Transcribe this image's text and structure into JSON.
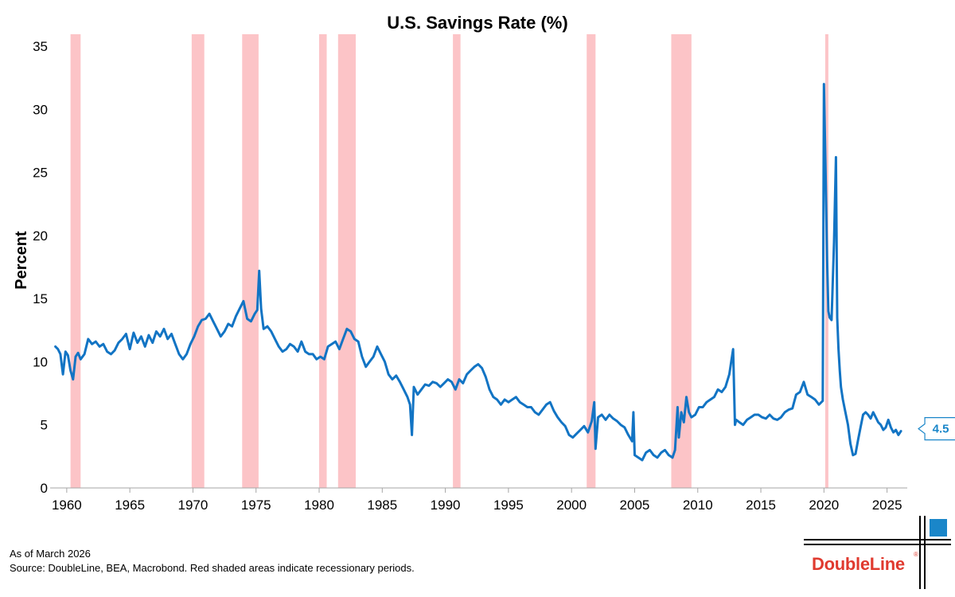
{
  "chart_data": {
    "type": "line",
    "title": "U.S. Savings Rate (%)",
    "xlabel": "",
    "ylabel": "Percent",
    "xlim": [
      1959,
      2026.6
    ],
    "ylim": [
      0,
      35
    ],
    "x_ticks": [
      1960,
      1965,
      1970,
      1975,
      1980,
      1985,
      1990,
      1995,
      2000,
      2005,
      2010,
      2015,
      2020,
      2025
    ],
    "y_ticks": [
      0,
      5,
      10,
      15,
      20,
      25,
      30,
      35
    ],
    "grid": false,
    "legend": "none",
    "recessions": [
      [
        1960.3,
        1961.1
      ],
      [
        1969.9,
        1970.9
      ],
      [
        1973.9,
        1975.2
      ],
      [
        1980.0,
        1980.6
      ],
      [
        1981.5,
        1982.9
      ],
      [
        1990.6,
        1991.2
      ],
      [
        2001.2,
        2001.9
      ],
      [
        2007.9,
        2009.5
      ],
      [
        2020.1,
        2020.35
      ]
    ],
    "series": [
      {
        "x": [
          1959.1,
          1959.3,
          1959.5,
          1959.7,
          1959.9,
          1960.1,
          1960.3,
          1960.5,
          1960.7,
          1960.9,
          1961.1,
          1961.4,
          1961.7,
          1962.0,
          1962.3,
          1962.6,
          1962.9,
          1963.2,
          1963.5,
          1963.8,
          1964.1,
          1964.4,
          1964.7,
          1965.0,
          1965.3,
          1965.6,
          1965.9,
          1966.2,
          1966.5,
          1966.8,
          1967.1,
          1967.4,
          1967.7,
          1968.0,
          1968.3,
          1968.6,
          1968.9,
          1969.2,
          1969.5,
          1969.8,
          1970.1,
          1970.4,
          1970.7,
          1971.0,
          1971.3,
          1971.6,
          1971.9,
          1972.2,
          1972.5,
          1972.8,
          1973.1,
          1973.4,
          1973.7,
          1974.0,
          1974.3,
          1974.6,
          1974.9,
          1975.1,
          1975.25,
          1975.4,
          1975.6,
          1975.9,
          1976.2,
          1976.5,
          1976.8,
          1977.1,
          1977.4,
          1977.7,
          1978.0,
          1978.3,
          1978.6,
          1978.9,
          1979.2,
          1979.5,
          1979.8,
          1980.1,
          1980.4,
          1980.7,
          1981.0,
          1981.3,
          1981.6,
          1981.9,
          1982.2,
          1982.5,
          1982.8,
          1983.1,
          1983.4,
          1983.7,
          1984.0,
          1984.3,
          1984.6,
          1984.9,
          1985.2,
          1985.5,
          1985.8,
          1986.1,
          1986.4,
          1986.7,
          1987.0,
          1987.2,
          1987.35,
          1987.5,
          1987.8,
          1988.1,
          1988.4,
          1988.7,
          1989.0,
          1989.3,
          1989.6,
          1989.9,
          1990.2,
          1990.5,
          1990.8,
          1991.1,
          1991.4,
          1991.7,
          1992.0,
          1992.3,
          1992.6,
          1992.9,
          1993.2,
          1993.5,
          1993.8,
          1994.1,
          1994.4,
          1994.7,
          1995.0,
          1995.3,
          1995.6,
          1995.9,
          1996.2,
          1996.5,
          1996.8,
          1997.1,
          1997.4,
          1997.7,
          1998.0,
          1998.3,
          1998.6,
          1998.9,
          1999.2,
          1999.5,
          1999.8,
          2000.1,
          2000.4,
          2000.7,
          2001.0,
          2001.3,
          2001.6,
          2001.8,
          2001.9,
          2002.1,
          2002.4,
          2002.7,
          2003.0,
          2003.3,
          2003.6,
          2003.9,
          2004.2,
          2004.5,
          2004.8,
          2004.9,
          2005.0,
          2005.3,
          2005.6,
          2005.9,
          2006.2,
          2006.5,
          2006.8,
          2007.1,
          2007.4,
          2007.7,
          2008.0,
          2008.2,
          2008.4,
          2008.5,
          2008.7,
          2008.9,
          2009.1,
          2009.3,
          2009.5,
          2009.8,
          2010.1,
          2010.4,
          2010.7,
          2011.0,
          2011.3,
          2011.6,
          2011.9,
          2012.2,
          2012.5,
          2012.8,
          2012.95,
          2013.05,
          2013.3,
          2013.6,
          2013.9,
          2014.2,
          2014.5,
          2014.8,
          2015.1,
          2015.4,
          2015.7,
          2016.0,
          2016.3,
          2016.6,
          2016.9,
          2017.2,
          2017.5,
          2017.8,
          2018.1,
          2018.4,
          2018.7,
          2019.0,
          2019.3,
          2019.6,
          2019.9,
          2020.0,
          2020.15,
          2020.25,
          2020.35,
          2020.45,
          2020.6,
          2020.8,
          2020.95,
          2021.05,
          2021.15,
          2021.25,
          2021.35,
          2021.5,
          2021.7,
          2021.9,
          2022.1,
          2022.3,
          2022.5,
          2022.7,
          2022.9,
          2023.1,
          2023.3,
          2023.5,
          2023.7,
          2023.9,
          2024.1,
          2024.3,
          2024.5,
          2024.7,
          2024.9,
          2025.1,
          2025.3,
          2025.5,
          2025.7,
          2025.9,
          2026.1
        ],
        "values": [
          11.2,
          11.0,
          10.6,
          9.0,
          10.8,
          10.5,
          9.3,
          8.6,
          10.4,
          10.7,
          10.2,
          10.6,
          11.8,
          11.4,
          11.6,
          11.2,
          11.4,
          10.8,
          10.6,
          10.9,
          11.5,
          11.8,
          12.2,
          11.0,
          12.3,
          11.5,
          12.0,
          11.2,
          12.1,
          11.5,
          12.4,
          12.0,
          12.6,
          11.8,
          12.2,
          11.4,
          10.6,
          10.2,
          10.6,
          11.4,
          12.0,
          12.8,
          13.3,
          13.4,
          13.8,
          13.2,
          12.6,
          12.0,
          12.4,
          13.0,
          12.8,
          13.6,
          14.2,
          14.8,
          13.4,
          13.2,
          13.8,
          14.1,
          17.2,
          14.2,
          12.6,
          12.8,
          12.4,
          11.8,
          11.2,
          10.8,
          11.0,
          11.4,
          11.2,
          10.8,
          11.6,
          10.8,
          10.6,
          10.6,
          10.2,
          10.4,
          10.2,
          11.2,
          11.4,
          11.6,
          11.0,
          11.8,
          12.6,
          12.4,
          11.8,
          11.6,
          10.4,
          9.6,
          10.0,
          10.4,
          11.2,
          10.6,
          10.0,
          9.0,
          8.6,
          8.9,
          8.4,
          7.8,
          7.2,
          6.6,
          4.2,
          8.0,
          7.4,
          7.8,
          8.2,
          8.1,
          8.4,
          8.3,
          8.0,
          8.3,
          8.6,
          8.4,
          7.8,
          8.6,
          8.3,
          9.0,
          9.3,
          9.6,
          9.8,
          9.5,
          8.8,
          7.8,
          7.2,
          7.0,
          6.6,
          7.0,
          6.8,
          7.0,
          7.2,
          6.8,
          6.6,
          6.4,
          6.4,
          6.0,
          5.8,
          6.2,
          6.6,
          6.8,
          6.1,
          5.6,
          5.2,
          4.9,
          4.2,
          4.0,
          4.3,
          4.6,
          4.9,
          4.4,
          5.3,
          6.8,
          3.1,
          5.6,
          5.8,
          5.4,
          5.8,
          5.5,
          5.3,
          5.0,
          4.8,
          4.2,
          3.7,
          6.0,
          2.6,
          2.4,
          2.2,
          2.8,
          3.0,
          2.6,
          2.4,
          2.8,
          3.0,
          2.6,
          2.4,
          3.0,
          6.4,
          4.0,
          6.0,
          5.2,
          7.2,
          6.0,
          5.6,
          5.8,
          6.4,
          6.4,
          6.8,
          7.0,
          7.2,
          7.8,
          7.6,
          8.0,
          9.0,
          11.0,
          5.0,
          5.4,
          5.2,
          5.0,
          5.4,
          5.6,
          5.8,
          5.8,
          5.6,
          5.5,
          5.8,
          5.5,
          5.4,
          5.6,
          6.0,
          6.2,
          6.3,
          7.4,
          7.6,
          8.4,
          7.4,
          7.2,
          7.0,
          6.6,
          6.9,
          32.0,
          24.0,
          18.0,
          14.0,
          13.5,
          13.3,
          19.5,
          26.2,
          13.5,
          11.0,
          9.3,
          8.0,
          7.0,
          6.0,
          5.0,
          3.5,
          2.6,
          2.7,
          3.8,
          4.8,
          5.8,
          6.0,
          5.8,
          5.5,
          6.0,
          5.6,
          5.2,
          5.0,
          4.6,
          4.8,
          5.4,
          4.8,
          4.4,
          4.6,
          4.2,
          4.5
        ]
      }
    ],
    "last_value_label": "4.5"
  },
  "colors": {
    "line": "#1274c4",
    "recession": "#fcc4c7",
    "callout_border": "#1a86c9",
    "callout_text": "#1a86c9",
    "logo_blue": "#1a86c9",
    "logo_red": "#e03a2f"
  },
  "footer": {
    "as_of": "As of March 2026",
    "source": "Source: DoubleLine, BEA, Macrobond. Red shaded areas indicate recessionary periods."
  },
  "logo": {
    "text": "DoubleLine",
    "mark": "®"
  }
}
